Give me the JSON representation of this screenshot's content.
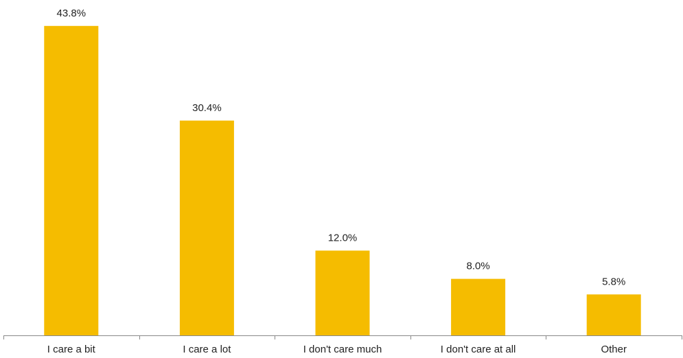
{
  "chart_data": {
    "type": "bar",
    "categories": [
      "I care a bit",
      "I care a lot",
      "I don't care much",
      "I don't care at all",
      "Other"
    ],
    "values": [
      43.8,
      30.4,
      12.0,
      8.0,
      5.8
    ],
    "value_labels": [
      "43.8%",
      "30.4%",
      "12.0%",
      "8.0%",
      "5.8%"
    ],
    "unit": "%",
    "ylim": [
      0,
      46.5
    ],
    "grid": false,
    "legend": "none",
    "bar_color": "#F5BC00",
    "text_color": "#222222",
    "axis_color": "#888888"
  }
}
